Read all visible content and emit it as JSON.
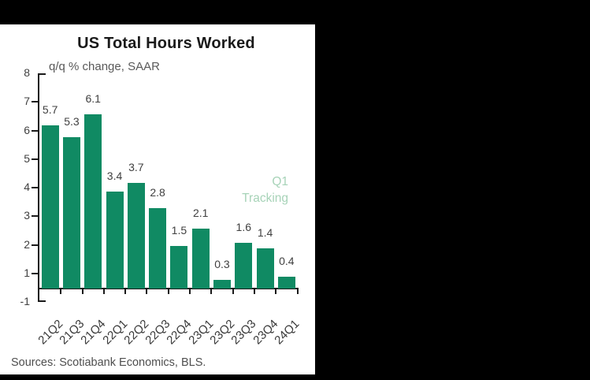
{
  "window": {
    "background": "#000000",
    "card_background": "#ffffff"
  },
  "chart_data": {
    "type": "bar",
    "title": "US Total Hours Worked",
    "subtitle": "q/q % change, SAAR",
    "categories": [
      "21Q2",
      "21Q3",
      "21Q4",
      "22Q1",
      "22Q2",
      "22Q3",
      "22Q4",
      "23Q1",
      "23Q2",
      "23Q3",
      "23Q4",
      "24Q1"
    ],
    "values": [
      5.7,
      5.3,
      6.1,
      3.4,
      3.7,
      2.8,
      1.5,
      2.1,
      0.3,
      1.6,
      1.4,
      0.4
    ],
    "value_labels": [
      "5.7",
      "5.3",
      "6.1",
      "3.4",
      "3.7",
      "2.8",
      "1.5",
      "2.1",
      "0.3",
      "1.6",
      "1.4",
      "0.4"
    ],
    "bar_color": "#108A63",
    "axis_color": "#1A1A1A",
    "label_color": "#404040",
    "y_axis": {
      "tick_labels": [
        "8",
        "7",
        "6",
        "5",
        "4",
        "3",
        "2",
        "1",
        "-1"
      ],
      "range_shown": [
        -1,
        8
      ],
      "gridlines": false
    },
    "x_axis": {
      "label_rotation_deg": -45
    },
    "annotation": {
      "lines": [
        "Q1",
        "Tracking"
      ],
      "color": "#A7D3B8"
    },
    "legend": null,
    "data_labels": true
  },
  "footer": {
    "sources": "Sources: Scotiabank Economics, BLS."
  }
}
